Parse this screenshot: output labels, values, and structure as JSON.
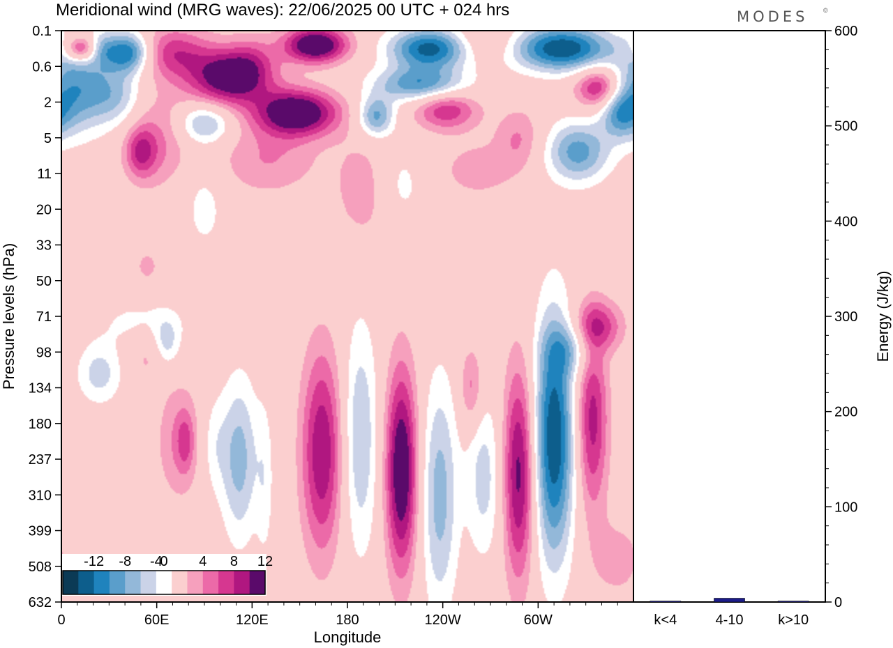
{
  "header": {
    "title": "Meridional wind (MRG waves):  22/06/2025  00 UTC  + 024 hrs",
    "brand": "MODES",
    "brand_mark": "©"
  },
  "chart_data": [
    {
      "type": "heatmap",
      "title": "Meridional wind (MRG waves):  22/06/2025  00 UTC  + 024 hrs",
      "xlabel": "Longitude",
      "ylabel": "Pressure levels (hPa)",
      "x_ticks": [
        "0",
        "60E",
        "120E",
        "180",
        "120W",
        "60W"
      ],
      "x_tick_degrees": [
        0,
        60,
        120,
        180,
        240,
        300
      ],
      "x_range_degrees": [
        0,
        360
      ],
      "y_ticks": [
        "0.1",
        "0.6",
        "2",
        "5",
        "11",
        "20",
        "33",
        "50",
        "71",
        "98",
        "134",
        "180",
        "237",
        "310",
        "399",
        "508",
        "632"
      ],
      "y_axis": "pressure levels, top 0.1 hPa, bottom 632 hPa, one level per tick",
      "colorbar": {
        "labels": [
          "-12",
          "-8",
          "-4",
          "0",
          "4",
          "8",
          "12"
        ],
        "label_values": [
          -12,
          -8,
          -4,
          0,
          4,
          8,
          12
        ],
        "levels": [
          -14,
          -12,
          -10,
          -8,
          -6,
          -4,
          -2,
          2,
          4,
          6,
          8,
          10,
          12,
          14
        ],
        "colors": [
          "#0b3a55",
          "#0d5e8c",
          "#1f83bd",
          "#5a9ecb",
          "#93b8d9",
          "#cbd3e8",
          "#ffffff",
          "#fbcfcf",
          "#f6a0bd",
          "#ec6aa8",
          "#d63790",
          "#b01780",
          "#5a0a6a"
        ]
      },
      "features": [
        {
          "lon": 12,
          "level": 0.5,
          "value": 10,
          "sx": 7,
          "sy": 0.25
        },
        {
          "lon": 26,
          "level": 0.5,
          "value": -4,
          "sx": 6,
          "sy": 0.35
        },
        {
          "lon": 42,
          "level": 0.6,
          "value": -12,
          "sx": 10,
          "sy": 0.4
        },
        {
          "lon": 8,
          "level": 1.6,
          "value": -9,
          "sx": 14,
          "sy": 0.9
        },
        {
          "lon": 34,
          "level": 1.8,
          "value": -6,
          "sx": 12,
          "sy": 0.6
        },
        {
          "lon": 70,
          "level": 0.6,
          "value": 7,
          "sx": 16,
          "sy": 0.5
        },
        {
          "lon": 106,
          "level": 1.3,
          "value": 13,
          "sx": 18,
          "sy": 0.55
        },
        {
          "lon": 62,
          "level": 3.0,
          "value": 4,
          "sx": 14,
          "sy": 1.0
        },
        {
          "lon": 50,
          "level": 3.4,
          "value": 7,
          "sx": 7,
          "sy": 0.5
        },
        {
          "lon": 90,
          "level": 2.6,
          "value": -7,
          "sx": 12,
          "sy": 0.4
        },
        {
          "lon": 160,
          "level": 0.4,
          "value": 14,
          "sx": 14,
          "sy": 0.35
        },
        {
          "lon": 148,
          "level": 2.3,
          "value": 14,
          "sx": 18,
          "sy": 0.45
        },
        {
          "lon": 130,
          "level": 3.6,
          "value": 4,
          "sx": 22,
          "sy": 0.7
        },
        {
          "lon": 120,
          "level": 0.8,
          "value": 3,
          "sx": 10,
          "sy": 0.5
        },
        {
          "lon": 232,
          "level": 0.5,
          "value": -13,
          "sx": 18,
          "sy": 0.4
        },
        {
          "lon": 226,
          "level": 1.5,
          "value": -10,
          "sx": 20,
          "sy": 0.35
        },
        {
          "lon": 198,
          "level": 2.4,
          "value": -9,
          "sx": 8,
          "sy": 0.4
        },
        {
          "lon": 242,
          "level": 2.2,
          "value": 8,
          "sx": 14,
          "sy": 0.4
        },
        {
          "lon": 266,
          "level": 0.3,
          "value": 4,
          "sx": 14,
          "sy": 0.4
        },
        {
          "lon": 315,
          "level": 0.5,
          "value": -14,
          "sx": 22,
          "sy": 0.45
        },
        {
          "lon": 338,
          "level": 1.6,
          "value": 9,
          "sx": 10,
          "sy": 0.4
        },
        {
          "lon": 352,
          "level": 2.3,
          "value": -8,
          "sx": 9,
          "sy": 0.5
        },
        {
          "lon": 325,
          "level": 3.4,
          "value": -9,
          "sx": 14,
          "sy": 0.6
        },
        {
          "lon": 288,
          "level": 3.0,
          "value": 4,
          "sx": 10,
          "sy": 0.6
        },
        {
          "lon": 262,
          "level": 3.9,
          "value": 3,
          "sx": 18,
          "sy": 0.6
        },
        {
          "lon": 190,
          "level": 4.5,
          "value": 3,
          "sx": 14,
          "sy": 1.2
        },
        {
          "lon": 214,
          "level": 4.3,
          "value": -3,
          "sx": 10,
          "sy": 0.8
        },
        {
          "lon": 90,
          "level": 4.9,
          "value": -3,
          "sx": 9,
          "sy": 0.9
        },
        {
          "lon": 54,
          "level": 6.6,
          "value": 3,
          "sx": 5,
          "sy": 0.3
        },
        {
          "lon": 52,
          "level": 8.2,
          "value": -3,
          "sx": 20,
          "sy": 0.5
        },
        {
          "lon": 66,
          "level": 8.8,
          "value": -5,
          "sx": 6,
          "sy": 0.5
        },
        {
          "lon": 24,
          "level": 9.6,
          "value": -5,
          "sx": 10,
          "sy": 0.6
        },
        {
          "lon": 55,
          "level": 9.0,
          "value": 3,
          "sx": 9,
          "sy": 0.6
        },
        {
          "lon": 74,
          "level": 11.5,
          "value": 4,
          "sx": 10,
          "sy": 1.2
        },
        {
          "lon": 78,
          "level": 11.5,
          "value": 4,
          "sx": 4,
          "sy": 0.6
        },
        {
          "lon": 112,
          "level": 12.0,
          "value": -7,
          "sx": 8,
          "sy": 1.6
        },
        {
          "lon": 96,
          "level": 11.6,
          "value": -3,
          "sx": 6,
          "sy": 1.0
        },
        {
          "lon": 128,
          "level": 12.6,
          "value": -3,
          "sx": 4,
          "sy": 1.6
        },
        {
          "lon": 164,
          "level": 11.8,
          "value": 10,
          "sx": 9,
          "sy": 2.0
        },
        {
          "lon": 188,
          "level": 11.4,
          "value": -6,
          "sx": 8,
          "sy": 2.3
        },
        {
          "lon": 214,
          "level": 12.3,
          "value": 13,
          "sx": 7,
          "sy": 2.0
        },
        {
          "lon": 238,
          "level": 13.0,
          "value": -7,
          "sx": 8,
          "sy": 2.3
        },
        {
          "lon": 258,
          "level": 10.0,
          "value": 5,
          "sx": 5,
          "sy": 0.8
        },
        {
          "lon": 266,
          "level": 12.5,
          "value": -5,
          "sx": 8,
          "sy": 1.6
        },
        {
          "lon": 288,
          "level": 12.4,
          "value": 11,
          "sx": 7,
          "sy": 2.1
        },
        {
          "lon": 310,
          "level": 11.4,
          "value": -14,
          "sx": 9,
          "sy": 2.4
        },
        {
          "lon": 334,
          "level": 10.9,
          "value": 9,
          "sx": 7,
          "sy": 1.8
        },
        {
          "lon": 322,
          "level": 8.9,
          "value": -5,
          "sx": 11,
          "sy": 0.5
        },
        {
          "lon": 338,
          "level": 8.3,
          "value": 7,
          "sx": 11,
          "sy": 0.5
        },
        {
          "lon": 350,
          "level": 14.8,
          "value": 3,
          "sx": 12,
          "sy": 0.8
        }
      ]
    },
    {
      "type": "bar",
      "categories": [
        "k<4",
        "4-10",
        "k>10"
      ],
      "values": [
        1,
        4,
        1
      ],
      "ylabel": "Energy (J/kg)",
      "ylim": [
        0,
        600
      ],
      "y_ticks": [
        "0",
        "100",
        "200",
        "300",
        "400",
        "500",
        "600"
      ],
      "y_minor_step": 20,
      "bar_colors": [
        "#1c1c8a",
        "#1c1c8a",
        "#1c1c8a"
      ]
    }
  ]
}
